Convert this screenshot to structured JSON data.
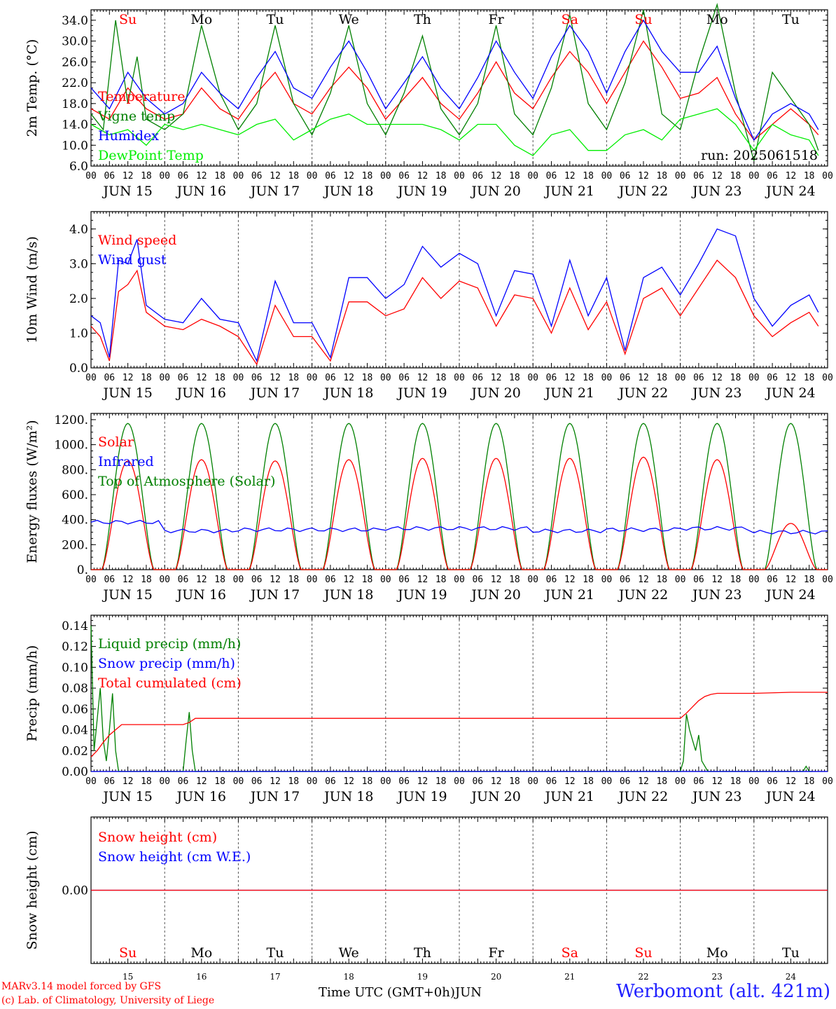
{
  "run_label": "run: 2025061518",
  "station": "Werbomont (alt. 421m)",
  "credits": [
    "MARv3.14 model forced by GFS",
    "(c) Lab. of Climatology, University of Liege"
  ],
  "xaxis_title": "Time UTC (GMT+0h)",
  "month_label": "JUN",
  "hour_ticks": [
    "00",
    "06",
    "12",
    "18"
  ],
  "days": [
    {
      "label": "JUN 15",
      "weekday": "Su",
      "num": "15",
      "weekend": true
    },
    {
      "label": "JUN 16",
      "weekday": "Mo",
      "num": "16",
      "weekend": false
    },
    {
      "label": "JUN 17",
      "weekday": "Tu",
      "num": "17",
      "weekend": false
    },
    {
      "label": "JUN 18",
      "weekday": "We",
      "num": "18",
      "weekend": false
    },
    {
      "label": "JUN 19",
      "weekday": "Th",
      "num": "19",
      "weekend": false
    },
    {
      "label": "JUN 20",
      "weekday": "Fr",
      "num": "20",
      "weekend": false
    },
    {
      "label": "JUN 21",
      "weekday": "Sa",
      "num": "21",
      "weekend": true
    },
    {
      "label": "JUN 22",
      "weekday": "Su",
      "num": "22",
      "weekend": true
    },
    {
      "label": "JUN 23",
      "weekday": "Mo",
      "num": "23",
      "weekend": false
    },
    {
      "label": "JUN 24",
      "weekday": "Tu",
      "num": "24",
      "weekend": false
    }
  ],
  "colors": {
    "red": "#ff0000",
    "blue": "#0000ff",
    "darkgreen": "#008000",
    "lightgreen": "#00ee00",
    "weekend": "#ff0000",
    "station": "#2020ff"
  },
  "chart_data": [
    {
      "type": "line",
      "ylabel": "2m Temp. (°C)",
      "ylim": [
        6,
        36
      ],
      "yticks": [
        "6.0",
        "10.0",
        "14.0",
        "18.0",
        "22.0",
        "26.0",
        "30.0",
        "34.0"
      ],
      "ytick_values": [
        6,
        10,
        14,
        18,
        22,
        26,
        30,
        34
      ],
      "x_unit": "hours from 2025-06-15 00 UTC",
      "series": [
        {
          "name": "Temperature",
          "color": "#ff0000",
          "x": [
            0,
            6,
            12,
            18,
            24,
            30,
            36,
            42,
            48,
            54,
            60,
            66,
            72,
            78,
            84,
            90,
            96,
            102,
            108,
            114,
            120,
            126,
            132,
            138,
            144,
            150,
            156,
            162,
            168,
            174,
            180,
            186,
            192,
            198,
            204,
            210,
            216,
            222,
            228,
            234,
            237
          ],
          "y": [
            17,
            15,
            21,
            17,
            15,
            16,
            21,
            17,
            15,
            20,
            24,
            18,
            16,
            21,
            25,
            21,
            15,
            19,
            23,
            18,
            15,
            20,
            26,
            20,
            17,
            23,
            28,
            24,
            18,
            24,
            30,
            25,
            19,
            20,
            23,
            16,
            11,
            14,
            17,
            14,
            12
          ]
        },
        {
          "name": "Vigne temp",
          "color": "#008000",
          "x": [
            0,
            4,
            8,
            12,
            15,
            18,
            24,
            30,
            36,
            42,
            48,
            54,
            60,
            66,
            72,
            78,
            84,
            90,
            96,
            102,
            108,
            114,
            120,
            126,
            132,
            138,
            144,
            150,
            156,
            162,
            168,
            174,
            180,
            186,
            192,
            198,
            204,
            210,
            216,
            222,
            228,
            234,
            237
          ],
          "y": [
            16,
            13,
            34,
            18,
            27,
            15,
            13,
            16,
            33,
            20,
            13,
            18,
            33,
            18,
            12,
            20,
            33,
            18,
            12,
            20,
            31,
            17,
            12,
            18,
            33,
            16,
            12,
            21,
            35,
            18,
            13,
            22,
            36,
            16,
            13,
            26,
            37,
            20,
            7,
            24,
            19,
            14,
            9
          ]
        },
        {
          "name": "Humidex",
          "color": "#0000ff",
          "x": [
            0,
            6,
            12,
            18,
            24,
            30,
            36,
            42,
            48,
            54,
            60,
            66,
            72,
            78,
            84,
            90,
            96,
            102,
            108,
            114,
            120,
            126,
            132,
            138,
            144,
            150,
            156,
            162,
            168,
            174,
            180,
            186,
            192,
            198,
            204,
            210,
            216,
            222,
            228,
            234,
            237
          ],
          "y": [
            21,
            17,
            24,
            19,
            16,
            18,
            24,
            20,
            17,
            23,
            28,
            21,
            19,
            25,
            30,
            24,
            17,
            22,
            27,
            21,
            17,
            23,
            30,
            24,
            19,
            27,
            33,
            28,
            20,
            28,
            34,
            28,
            24,
            24,
            29,
            19,
            11,
            16,
            18,
            16,
            13
          ]
        },
        {
          "name": "DewPoint Temp",
          "color": "#00ee00",
          "x": [
            0,
            6,
            12,
            18,
            24,
            30,
            36,
            42,
            48,
            54,
            60,
            66,
            72,
            78,
            84,
            90,
            96,
            102,
            108,
            114,
            120,
            126,
            132,
            138,
            144,
            150,
            156,
            162,
            168,
            174,
            180,
            186,
            192,
            198,
            204,
            210,
            216,
            222,
            228,
            234,
            237
          ],
          "y": [
            14,
            12,
            13,
            10,
            14,
            13,
            14,
            13,
            12,
            14,
            15,
            11,
            13,
            15,
            16,
            14,
            14,
            14,
            14,
            13,
            11,
            14,
            14,
            10,
            8,
            12,
            13,
            9,
            9,
            12,
            13,
            11,
            15,
            16,
            17,
            14,
            9,
            14,
            12,
            11,
            8
          ]
        }
      ]
    },
    {
      "type": "line",
      "ylabel": "10m Wind (m/s)",
      "ylim": [
        0,
        4.5
      ],
      "yticks": [
        "0.0",
        "1.0",
        "2.0",
        "3.0",
        "4.0"
      ],
      "ytick_values": [
        0,
        1,
        2,
        3,
        4
      ],
      "x_unit": "hours from 2025-06-15 00 UTC",
      "series": [
        {
          "name": "Wind speed",
          "color": "#ff0000",
          "x": [
            0,
            3,
            6,
            9,
            12,
            15,
            18,
            24,
            30,
            36,
            42,
            48,
            54,
            60,
            66,
            72,
            78,
            84,
            90,
            96,
            102,
            108,
            114,
            120,
            126,
            132,
            138,
            144,
            150,
            156,
            162,
            168,
            174,
            180,
            186,
            192,
            198,
            204,
            210,
            216,
            222,
            228,
            234,
            237
          ],
          "y": [
            1.2,
            0.9,
            0.2,
            2.2,
            2.4,
            2.8,
            1.6,
            1.2,
            1.1,
            1.4,
            1.2,
            0.9,
            0.1,
            1.8,
            0.9,
            0.9,
            0.2,
            1.9,
            1.9,
            1.5,
            1.7,
            2.6,
            2.0,
            2.5,
            2.3,
            1.2,
            2.1,
            2.0,
            1.0,
            2.3,
            1.1,
            1.9,
            0.4,
            2.0,
            2.3,
            1.5,
            2.3,
            3.1,
            2.6,
            1.5,
            0.9,
            1.3,
            1.6,
            1.2
          ]
        },
        {
          "name": "Wind gust",
          "color": "#0000ff",
          "x": [
            0,
            3,
            6,
            9,
            12,
            15,
            18,
            24,
            30,
            36,
            42,
            48,
            54,
            60,
            66,
            72,
            78,
            84,
            90,
            96,
            102,
            108,
            114,
            120,
            126,
            132,
            138,
            144,
            150,
            156,
            162,
            168,
            174,
            180,
            186,
            192,
            198,
            204,
            210,
            216,
            222,
            228,
            234,
            237
          ],
          "y": [
            1.5,
            1.3,
            0.3,
            3.1,
            3.0,
            3.7,
            1.8,
            1.4,
            1.3,
            2.0,
            1.4,
            1.3,
            0.2,
            2.5,
            1.3,
            1.3,
            0.3,
            2.6,
            2.6,
            2.0,
            2.4,
            3.5,
            2.9,
            3.3,
            3.0,
            1.5,
            2.8,
            2.7,
            1.2,
            3.1,
            1.5,
            2.6,
            0.5,
            2.6,
            2.9,
            2.1,
            3.0,
            4.0,
            3.8,
            2.0,
            1.2,
            1.8,
            2.1,
            1.6
          ]
        }
      ]
    },
    {
      "type": "line",
      "ylabel": "Energy fluxes (W/m²)",
      "ylim": [
        0,
        1250
      ],
      "yticks": [
        "0.",
        "200.",
        "400.",
        "600.",
        "800.",
        "1000.",
        "1200."
      ],
      "ytick_values": [
        0,
        200,
        400,
        600,
        800,
        1000,
        1200
      ],
      "x_unit": "hours from 2025-06-15 00 UTC",
      "toa_peak": 1170,
      "solar_peaks": [
        870,
        880,
        870,
        880,
        890,
        890,
        890,
        900,
        880,
        370
      ],
      "infrared_values": [
        380,
        310,
        320,
        320,
        330,
        330,
        310,
        320,
        330,
        300
      ],
      "series": [
        {
          "name": "Solar",
          "color": "#ff0000"
        },
        {
          "name": "Infrared",
          "color": "#0000ff"
        },
        {
          "name": "Top of Atmosphere (Solar)",
          "color": "#008000"
        }
      ]
    },
    {
      "type": "line",
      "ylabel": "Precip (mm/h)",
      "ylim": [
        0,
        0.15
      ],
      "yticks": [
        "0.00",
        "0.02",
        "0.04",
        "0.06",
        "0.08",
        "0.10",
        "0.12",
        "0.14"
      ],
      "ytick_values": [
        0,
        0.02,
        0.04,
        0.06,
        0.08,
        0.1,
        0.12,
        0.14
      ],
      "x_unit": "hours from 2025-06-15 00 UTC",
      "series": [
        {
          "name": "Liquid precip (mm/h)",
          "color": "#008000",
          "x": [
            0,
            1,
            2,
            3,
            4,
            5,
            6,
            7,
            8,
            9,
            10,
            11,
            30,
            31,
            32,
            33,
            34,
            192,
            193,
            194,
            195,
            196,
            197,
            198,
            199,
            200,
            201,
            202,
            203,
            232,
            233,
            234,
            235
          ],
          "y": [
            0.14,
            0.02,
            0.05,
            0.08,
            0.03,
            0.01,
            0.04,
            0.075,
            0.02,
            0.0,
            0.0,
            0.0,
            0.0,
            0.03,
            0.057,
            0.02,
            0.0,
            0.0,
            0.01,
            0.055,
            0.04,
            0.03,
            0.02,
            0.035,
            0.01,
            0.005,
            0.0,
            0.0,
            0.0,
            0.0,
            0.005,
            0.0,
            0.0
          ]
        },
        {
          "name": "Snow precip (mm/h)",
          "color": "#0000ff",
          "x": [
            0,
            240
          ],
          "y": [
            0,
            0
          ]
        },
        {
          "name": "Total cumulated (cm)",
          "color": "#ff0000",
          "x": [
            0,
            2,
            4,
            6,
            8,
            10,
            12,
            30,
            32,
            34,
            36,
            192,
            194,
            196,
            198,
            200,
            202,
            204,
            210,
            216,
            228,
            240
          ],
          "y": [
            0.014,
            0.02,
            0.028,
            0.035,
            0.04,
            0.045,
            0.045,
            0.045,
            0.047,
            0.051,
            0.051,
            0.051,
            0.056,
            0.062,
            0.068,
            0.072,
            0.074,
            0.075,
            0.075,
            0.075,
            0.076,
            0.076
          ]
        }
      ]
    },
    {
      "type": "line",
      "ylabel": "Snow height (cm)",
      "ylim": [
        -1,
        1
      ],
      "yticks": [
        "0.00"
      ],
      "ytick_values": [
        0
      ],
      "x_unit": "hours from 2025-06-15 00 UTC",
      "series": [
        {
          "name": "Snow height (cm)",
          "color": "#ff0000",
          "x": [
            0,
            240
          ],
          "y": [
            0,
            0
          ]
        },
        {
          "name": "Snow height (cm W.E.)",
          "color": "#0000ff",
          "x": [
            0,
            240
          ],
          "y": [
            0,
            0
          ]
        }
      ]
    }
  ]
}
